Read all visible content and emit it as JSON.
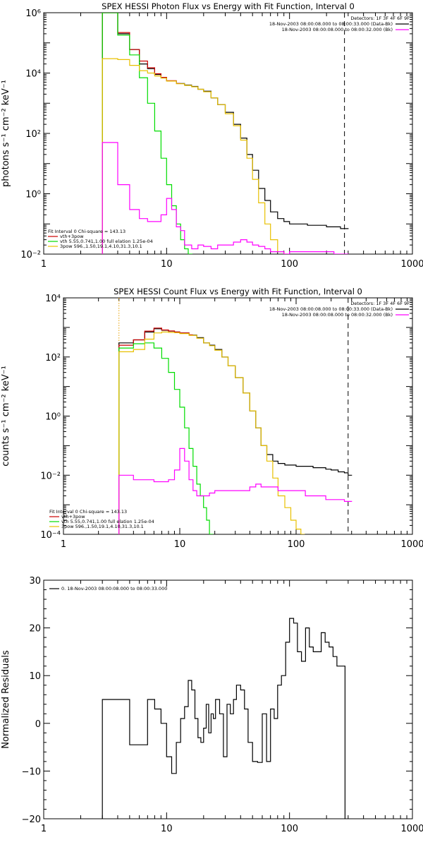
{
  "chart_data": [
    {
      "type": "line",
      "title": "SPEX HESSI Photon Flux vs Energy with Fit Function, Interval 0",
      "ylabel": "photons s⁻¹ cm⁻² keV⁻¹",
      "xscale": "log",
      "yscale": "log",
      "xlim": [
        1,
        1000
      ],
      "ylim": [
        0.01,
        1000000
      ],
      "x_ticks": [
        1,
        10,
        100,
        1000
      ],
      "x_tick_labels": [
        "1",
        "10",
        "100",
        "1000"
      ],
      "y_ticks": [
        0.01,
        1,
        100,
        10000,
        1000000
      ],
      "y_tick_labels": [
        "10⁻²",
        "10⁰",
        "10²",
        "10⁴",
        "10⁶"
      ],
      "grid": false,
      "vertical_lines": [
        {
          "x": 3,
          "style": "dotted",
          "color": "#e8a000"
        },
        {
          "x": 280,
          "style": "dashed",
          "color": "#000000"
        }
      ],
      "legend_top_right": [
        {
          "label": "Detectors: 1F 3F 4F 6F 9F",
          "color": ""
        },
        {
          "label": "18-Nov-2003 08:00:08.000 to 08:00:33.000 (Data-Bk)",
          "color": "#000000"
        },
        {
          "label": "18-Nov-2003 08:00:08.000 to 08:00:32.000 (Bk)",
          "color": "#ff00ff"
        }
      ],
      "fit_legend": {
        "title": "Fit Interval 0   Chi-square = 143.13",
        "entries": [
          {
            "label": "vth+3pow",
            "color": "#cc0000"
          },
          {
            "label": "vth 5.55,0.741,1.00  full elation 1.25e-04",
            "color": "#00dd00"
          },
          {
            "label": "3pow 596.,1.50,19.1,4.10,31.3,10.1",
            "color": "#e8c000"
          }
        ]
      },
      "series": [
        {
          "name": "Data-Bk",
          "color": "#000000",
          "x": [
            3,
            4,
            5,
            6,
            7,
            8,
            9,
            10,
            12,
            14,
            16,
            18,
            20,
            23,
            26,
            30,
            35,
            40,
            45,
            50,
            56,
            63,
            70,
            80,
            90,
            100,
            120,
            140,
            160,
            180,
            200,
            230,
            260,
            280
          ],
          "y": [
            1000000,
            200000,
            60000,
            20000,
            14000,
            9000,
            7000,
            5500,
            4500,
            4000,
            3600,
            2900,
            2500,
            1500,
            900,
            500,
            200,
            70,
            20,
            6,
            1.5,
            0.6,
            0.25,
            0.15,
            0.12,
            0.1,
            0.1,
            0.09,
            0.09,
            0.09,
            0.08,
            0.08,
            0.07,
            0.07
          ]
        },
        {
          "name": "vth+3pow",
          "color": "#cc0000",
          "x": [
            3,
            4,
            5,
            6,
            7,
            8,
            9,
            10,
            12
          ],
          "y": [
            1000000,
            220000,
            60000,
            25000,
            15000,
            9500,
            7200,
            5600,
            4500
          ]
        },
        {
          "name": "vth",
          "color": "#00dd00",
          "x": [
            3,
            4,
            5,
            6,
            7,
            8,
            9,
            10,
            11,
            12,
            13,
            14,
            15
          ],
          "y": [
            1000000,
            180000,
            40000,
            7000,
            1000,
            120,
            15,
            2,
            0.4,
            0.1,
            0.03,
            0.015,
            0.01
          ]
        },
        {
          "name": "3pow",
          "color": "#e8c000",
          "x": [
            3,
            4,
            5,
            6,
            7,
            8,
            9,
            10,
            12,
            14,
            16,
            18,
            20,
            23,
            26,
            30,
            35,
            40,
            45,
            50,
            56,
            63,
            70,
            80,
            90
          ],
          "y": [
            30000,
            28000,
            18000,
            12000,
            10000,
            8000,
            6800,
            5400,
            4400,
            3900,
            3500,
            2900,
            2400,
            1500,
            900,
            450,
            180,
            60,
            15,
            3,
            0.5,
            0.1,
            0.03,
            0.012,
            0.01
          ]
        },
        {
          "name": "Bk",
          "color": "#ff00ff",
          "x": [
            3,
            4,
            5,
            6,
            7,
            8,
            9,
            10,
            11,
            12,
            13,
            14,
            16,
            18,
            20,
            23,
            26,
            30,
            35,
            40,
            45,
            50,
            56,
            63,
            70,
            80,
            90,
            100,
            120,
            140,
            160,
            180,
            200,
            230,
            260,
            280
          ],
          "y": [
            50,
            2,
            0.3,
            0.15,
            0.12,
            0.12,
            0.2,
            0.7,
            0.3,
            0.08,
            0.06,
            0.02,
            0.015,
            0.02,
            0.018,
            0.015,
            0.02,
            0.02,
            0.025,
            0.03,
            0.025,
            0.02,
            0.018,
            0.015,
            0.012,
            0.012,
            0.01,
            0.012,
            0.012,
            0.012,
            0.012,
            0.012,
            0.012,
            0.01,
            0.01,
            0.01
          ]
        }
      ]
    },
    {
      "type": "line",
      "title": "SPEX HESSI Count Flux vs Energy with Fit Function, Interval 0",
      "ylabel": "counts s⁻¹ cm⁻² keV⁻¹",
      "xscale": "log",
      "yscale": "log",
      "xlim": [
        1,
        1000
      ],
      "ylim": [
        0.0001,
        10000
      ],
      "x_ticks": [
        1,
        10,
        100,
        1000
      ],
      "x_tick_labels": [
        "1",
        "10",
        "100",
        "1000"
      ],
      "y_ticks": [
        0.0001,
        0.01,
        1,
        100,
        10000
      ],
      "y_tick_labels": [
        "10⁻⁴",
        "10⁻²",
        "10⁰",
        "10²",
        "10⁴"
      ],
      "grid": false,
      "vertical_lines": [
        {
          "x": 3,
          "style": "dotted",
          "color": "#e8a000"
        },
        {
          "x": 280,
          "style": "dashed",
          "color": "#000000"
        }
      ],
      "legend_top_right": [
        {
          "label": "Detectors: 1F 3F 4F 6F 9F",
          "color": ""
        },
        {
          "label": "18-Nov-2003 08:00:08.000 to 08:00:33.000 (Data-Bk)",
          "color": "#000000"
        },
        {
          "label": "18-Nov-2003 08:00:08.000 to 08:00:32.000 (Bk)",
          "color": "#ff00ff"
        }
      ],
      "fit_legend": {
        "title": "Fit Interval 0   Chi-square = 143.13",
        "entries": [
          {
            "label": "vth+3pow",
            "color": "#cc0000"
          },
          {
            "label": "vth 5.55,0.741,1.00  full elation 1.25e-04",
            "color": "#00dd00"
          },
          {
            "label": "3pow 596.,1.50,19.1,4.10,31.3,10.1",
            "color": "#e8c000"
          }
        ]
      },
      "series": [
        {
          "name": "Data-Bk",
          "color": "#000000",
          "x": [
            3,
            4,
            5,
            6,
            7,
            8,
            9,
            10,
            12,
            14,
            16,
            18,
            20,
            23,
            26,
            30,
            35,
            40,
            45,
            50,
            56,
            63,
            70,
            80,
            90,
            100,
            120,
            140,
            160,
            180,
            200,
            230,
            260,
            280
          ],
          "y": [
            300,
            380,
            700,
            900,
            800,
            750,
            700,
            650,
            550,
            450,
            300,
            250,
            180,
            100,
            50,
            20,
            6,
            1.5,
            0.4,
            0.1,
            0.05,
            0.03,
            0.025,
            0.022,
            0.022,
            0.02,
            0.02,
            0.018,
            0.018,
            0.016,
            0.015,
            0.013,
            0.012,
            0.01
          ]
        },
        {
          "name": "vth+3pow",
          "color": "#cc0000",
          "x": [
            3,
            4,
            5,
            6,
            7,
            8,
            9,
            10,
            12
          ],
          "y": [
            250,
            380,
            750,
            950,
            820,
            760,
            700,
            650,
            560
          ]
        },
        {
          "name": "vth",
          "color": "#00dd00",
          "x": [
            3,
            4,
            5,
            6,
            7,
            8,
            9,
            10,
            11,
            12,
            13,
            14,
            15,
            16,
            17,
            18
          ],
          "y": [
            200,
            280,
            300,
            200,
            90,
            30,
            8,
            2,
            0.4,
            0.08,
            0.02,
            0.005,
            0.002,
            0.0008,
            0.0003,
            0.0001
          ]
        },
        {
          "name": "3pow",
          "color": "#e8c000",
          "x": [
            3,
            4,
            5,
            6,
            7,
            8,
            9,
            10,
            12,
            14,
            16,
            18,
            20,
            23,
            26,
            30,
            35,
            40,
            45,
            50,
            56,
            63,
            70,
            80,
            90,
            100,
            110
          ],
          "y": [
            150,
            180,
            400,
            650,
            700,
            680,
            660,
            620,
            540,
            430,
            300,
            240,
            170,
            100,
            50,
            20,
            6,
            1.5,
            0.4,
            0.1,
            0.03,
            0.008,
            0.002,
            0.0008,
            0.0003,
            0.00015,
            0.0001
          ]
        },
        {
          "name": "Bk",
          "color": "#ff00ff",
          "x": [
            3,
            4,
            5,
            6,
            7,
            8,
            9,
            10,
            11,
            12,
            13,
            14,
            16,
            18,
            20,
            23,
            26,
            30,
            35,
            40,
            45,
            50,
            56,
            63,
            70,
            80,
            90,
            100,
            120,
            140,
            160,
            180,
            200,
            230,
            260,
            280
          ],
          "y": [
            0.01,
            0.007,
            0.007,
            0.006,
            0.006,
            0.007,
            0.015,
            0.08,
            0.03,
            0.007,
            0.003,
            0.002,
            0.002,
            0.0025,
            0.003,
            0.003,
            0.003,
            0.003,
            0.003,
            0.004,
            0.005,
            0.004,
            0.004,
            0.004,
            0.003,
            0.003,
            0.003,
            0.003,
            0.002,
            0.002,
            0.002,
            0.0015,
            0.0015,
            0.0015,
            0.0013,
            0.0013
          ]
        }
      ]
    },
    {
      "type": "line",
      "title": "",
      "ylabel": "Normalized Residuals",
      "xscale": "log",
      "yscale": "linear",
      "xlim": [
        1,
        1000
      ],
      "ylim": [
        -20,
        30
      ],
      "x_ticks": [
        1,
        10,
        100,
        1000
      ],
      "x_tick_labels": [
        "1",
        "10",
        "100",
        "1000"
      ],
      "y_ticks": [
        -20,
        -10,
        0,
        10,
        20,
        30
      ],
      "y_tick_labels": [
        "−20",
        "−10",
        "0",
        "10",
        "20",
        "30"
      ],
      "grid": false,
      "vertical_lines": [],
      "legend_top_left": [
        {
          "label": "0. 18-Nov-2003 08:00:08.000 to 08:00:33.000",
          "color": "#000000"
        }
      ],
      "series": [
        {
          "name": "0. 18-Nov-2003 08:00:08.000 to 08:00:33.000",
          "color": "#000000",
          "steps": true,
          "x": [
            3,
            4,
            5,
            6,
            7,
            8,
            9,
            10,
            11,
            12,
            13,
            14,
            15,
            16,
            17,
            18,
            19,
            20,
            21,
            22,
            23,
            24,
            25,
            27,
            29,
            31,
            33,
            35,
            37,
            40,
            43,
            46,
            50,
            55,
            60,
            65,
            70,
            75,
            80,
            86,
            93,
            100,
            108,
            116,
            125,
            135,
            145,
            156,
            168,
            181,
            195,
            210,
            226,
            243,
            262
          ],
          "y": [
            5,
            5,
            -4.5,
            -4.5,
            5,
            3,
            0,
            -7,
            -10.5,
            -4,
            1,
            3.5,
            9,
            7,
            1,
            -3,
            -4,
            -1,
            4,
            -2,
            2,
            1,
            5,
            2,
            -7,
            4,
            2,
            5,
            8,
            7,
            3,
            -4,
            -8,
            -8.2,
            2,
            -8,
            3,
            1,
            8,
            10,
            17,
            22,
            21,
            15,
            13,
            20,
            16,
            15,
            15,
            19,
            17,
            16,
            14,
            12,
            12
          ]
        }
      ]
    }
  ]
}
